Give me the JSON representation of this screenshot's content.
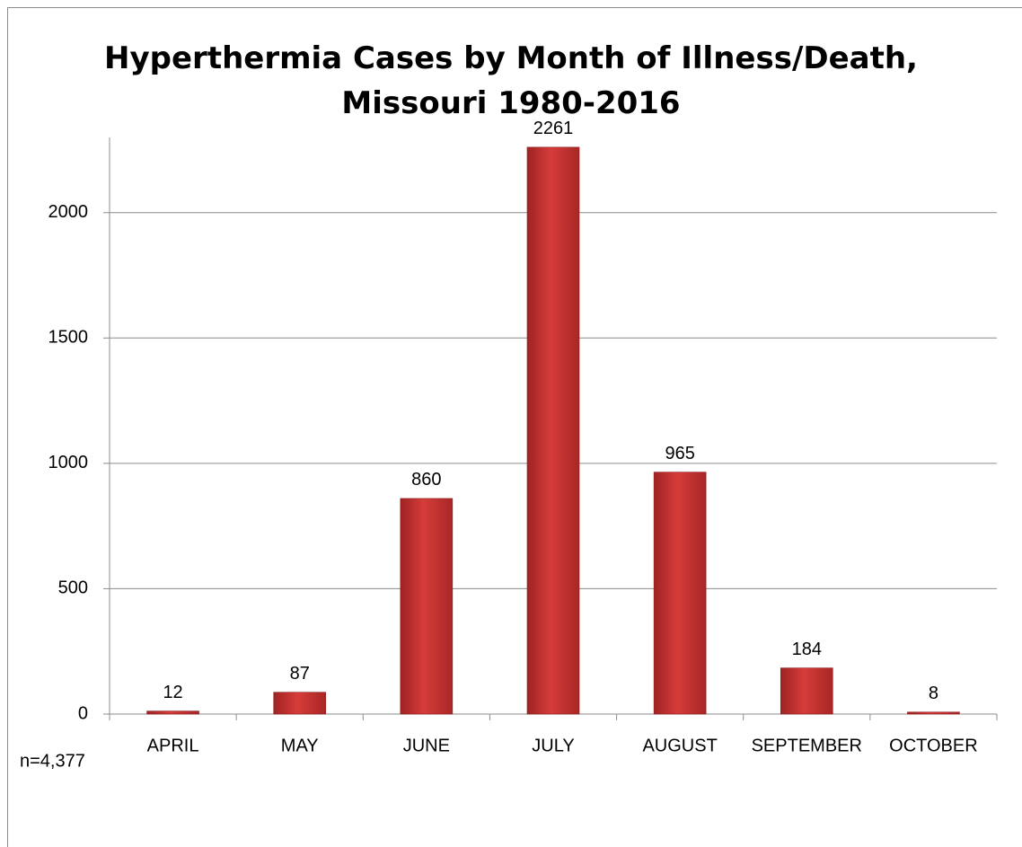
{
  "chart_data": {
    "type": "bar",
    "title": "Hyperthermia Cases by Month of Illness/Death, Missouri 1980-2016",
    "categories": [
      "APRIL",
      "MAY",
      "JUNE",
      "JULY",
      "AUGUST",
      "SEPTEMBER",
      "OCTOBER"
    ],
    "values": [
      12,
      87,
      860,
      2261,
      965,
      184,
      8
    ],
    "color": "#d63c3a",
    "ylim": [
      0,
      2300
    ],
    "yticks": [
      0,
      500,
      1000,
      1500,
      2000
    ],
    "grid": true,
    "annotation": "n=4,377"
  }
}
